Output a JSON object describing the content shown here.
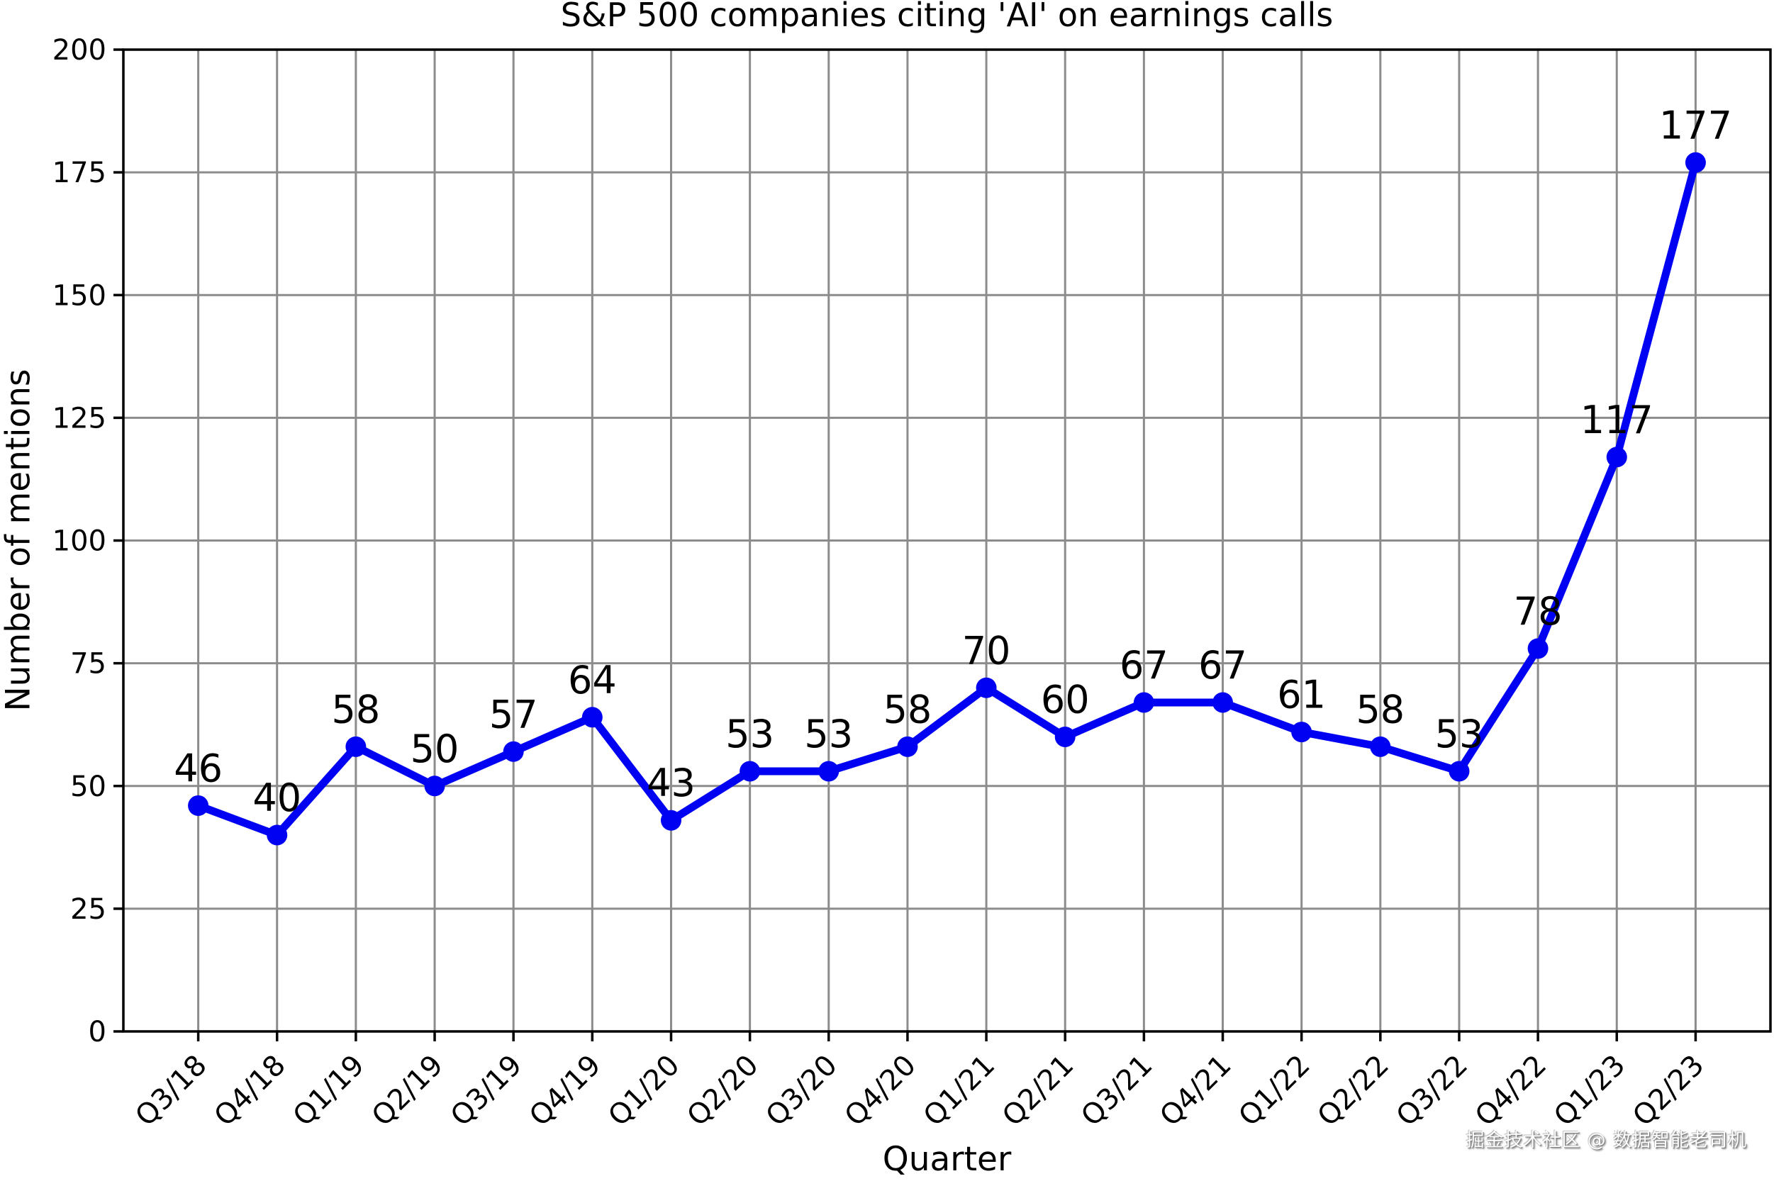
{
  "watermark": "掘金技术社区 @ 数据智能老司机",
  "chart_data": {
    "type": "line",
    "title": "S&P 500 companies citing 'AI' on earnings calls",
    "xlabel": "Quarter",
    "ylabel": "Number of mentions",
    "categories": [
      "Q3/18",
      "Q4/18",
      "Q1/19",
      "Q2/19",
      "Q3/19",
      "Q4/19",
      "Q1/20",
      "Q2/20",
      "Q3/20",
      "Q4/20",
      "Q1/21",
      "Q2/21",
      "Q3/21",
      "Q4/21",
      "Q1/22",
      "Q2/22",
      "Q3/22",
      "Q4/22",
      "Q1/23",
      "Q2/23"
    ],
    "values": [
      46,
      40,
      58,
      50,
      57,
      64,
      43,
      53,
      53,
      58,
      70,
      60,
      67,
      67,
      61,
      58,
      53,
      78,
      117,
      177
    ],
    "point_labels": [
      "46",
      "40",
      "58",
      "50",
      "57",
      "64",
      "43",
      "53",
      "53",
      "58",
      "70",
      "60",
      "67",
      "67",
      "61",
      "58",
      "53",
      "78",
      "117",
      "177"
    ],
    "ylim": [
      0,
      200
    ],
    "yticks": [
      0,
      25,
      50,
      75,
      100,
      125,
      150,
      175,
      200
    ],
    "grid": true,
    "legend": "none",
    "colors": {
      "line": "#0000f2",
      "marker": "#0000f2",
      "grid": "#8c8c8c",
      "axis": "#000000",
      "text": "#000000"
    }
  }
}
